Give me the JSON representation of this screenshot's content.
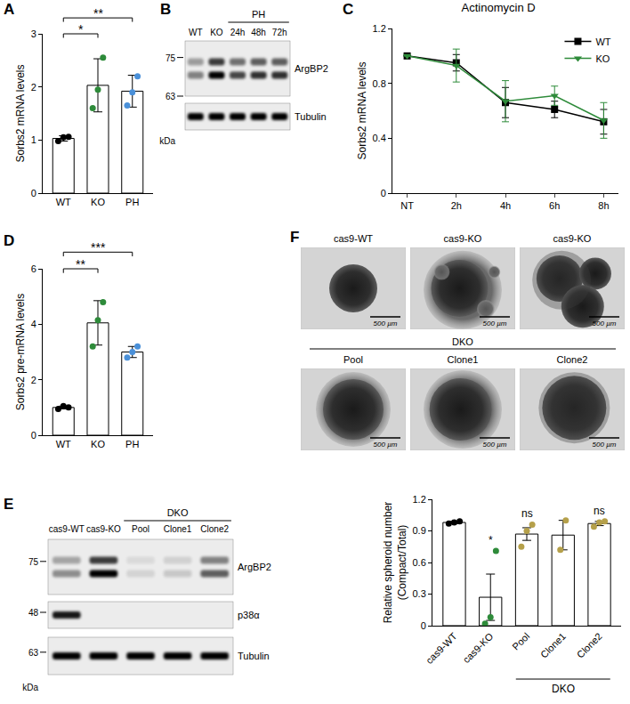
{
  "chart_data": [
    {
      "panel": "A",
      "type": "bar",
      "ylabel": "Sorbs2 mRNA levels",
      "categories": [
        "WT",
        "KO",
        "PH"
      ],
      "values": [
        1.03,
        2.03,
        1.92
      ],
      "error": [
        0.05,
        0.5,
        0.3
      ],
      "points": [
        [
          0.98,
          1.05,
          1.06
        ],
        [
          1.6,
          1.95,
          2.55
        ],
        [
          1.65,
          1.9,
          2.2
        ]
      ],
      "colors": [
        "#000000",
        "#2e8b3a",
        "#4a90d9"
      ],
      "ylim": [
        0,
        3
      ],
      "yticks": [
        0,
        1,
        2,
        3
      ],
      "annotations": [
        {
          "from": "WT",
          "to": "KO",
          "text": "*"
        },
        {
          "from": "WT",
          "to": "PH",
          "text": "**"
        }
      ]
    },
    {
      "panel": "C",
      "type": "line",
      "title": "Actinomycin D",
      "ylabel": "Sorbs2 mRNA levels",
      "categories": [
        "NT",
        "2h",
        "4h",
        "6h",
        "8h"
      ],
      "series": [
        {
          "name": "WT",
          "color": "#000000",
          "marker": "square",
          "values": [
            1,
            0.95,
            0.66,
            0.61,
            0.52
          ],
          "error": [
            0,
            0.06,
            0.11,
            0.06,
            0.09
          ]
        },
        {
          "name": "KO",
          "color": "#2e8b3a",
          "marker": "triangle-down",
          "values": [
            1,
            0.93,
            0.67,
            0.71,
            0.53
          ],
          "error": [
            0,
            0.12,
            0.15,
            0.07,
            0.13
          ]
        }
      ],
      "ylim": [
        0,
        1.2
      ],
      "yticks": [
        0,
        0.4,
        0.8,
        1.2
      ],
      "legend": "top right"
    },
    {
      "panel": "D",
      "type": "bar",
      "ylabel": "Sorbs2 pre-mRNA levels",
      "categories": [
        "WT",
        "KO",
        "PH"
      ],
      "values": [
        1.0,
        4.05,
        3.0
      ],
      "error": [
        0.05,
        0.8,
        0.2
      ],
      "points": [
        [
          0.95,
          1.05,
          1.0
        ],
        [
          3.2,
          4.15,
          4.8
        ],
        [
          2.8,
          3.0,
          3.2
        ]
      ],
      "colors": [
        "#000000",
        "#2e8b3a",
        "#4a90d9"
      ],
      "ylim": [
        0,
        6
      ],
      "yticks": [
        0,
        2,
        4,
        6
      ],
      "annotations": [
        {
          "from": "WT",
          "to": "KO",
          "text": "**"
        },
        {
          "from": "WT",
          "to": "PH",
          "text": "***"
        }
      ]
    },
    {
      "type": "bar",
      "ylabel": "Relative spheroid number\n(Compact/Total)",
      "categories": [
        "cas9-WT",
        "cas9-KO",
        "Pool",
        "Clone1",
        "Clone2"
      ],
      "values": [
        0.98,
        0.27,
        0.87,
        0.86,
        0.97
      ],
      "error": [
        0.01,
        0.22,
        0.06,
        0.14,
        0.02
      ],
      "points": [
        [
          0.97,
          0.98,
          0.99
        ],
        [
          0.02,
          0.08,
          0.71
        ],
        [
          0.75,
          0.9,
          0.96
        ],
        [
          0.72,
          1.0
        ],
        [
          0.94,
          0.98,
          0.99
        ]
      ],
      "colors": [
        "#000000",
        "#2e8b3a",
        "#b5a04a",
        "#b5a04a",
        "#b5a04a"
      ],
      "ylim": [
        0,
        1.2
      ],
      "yticks": [
        0,
        0.3,
        0.6,
        0.9,
        1.2
      ],
      "groups": [
        {
          "label": "DKO",
          "categories": [
            "Pool",
            "Clone1",
            "Clone2"
          ]
        }
      ],
      "annotations": [
        {
          "category": "cas9-KO",
          "text": "*"
        },
        {
          "category": "Pool",
          "text": "ns"
        },
        {
          "category": "Clone2",
          "text": "ns"
        }
      ]
    }
  ],
  "blots": [
    {
      "panel": "B",
      "lanes": [
        "WT",
        "KO",
        "24h",
        "48h",
        "72h"
      ],
      "groups": [
        {
          "label": "PH",
          "lanes": [
            "24h",
            "48h",
            "72h"
          ]
        }
      ],
      "rows": [
        {
          "label": "ArgBP2",
          "markers": [
            75,
            63
          ],
          "intensities": [
            0.45,
            1,
            0.7,
            0.8,
            0.8
          ]
        },
        {
          "label": "Tubulin",
          "markers": [],
          "intensities": [
            1,
            1,
            1,
            1,
            1
          ]
        }
      ],
      "unit": "kDa"
    },
    {
      "panel": "E",
      "lanes": [
        "cas9-WT",
        "cas9-KO",
        "Pool",
        "Clone1",
        "Clone2"
      ],
      "groups": [
        {
          "label": "DKO",
          "lanes": [
            "Pool",
            "Clone1",
            "Clone2"
          ]
        }
      ],
      "rows": [
        {
          "label": "ArgBP2",
          "markers": [
            75
          ],
          "intensities": [
            0.4,
            1,
            0.1,
            0.15,
            0.6
          ]
        },
        {
          "label": "p38α",
          "markers": [
            48
          ],
          "intensities": [
            0.9,
            0,
            0,
            0,
            0
          ]
        },
        {
          "label": "Tubulin",
          "markers": [
            63
          ],
          "intensities": [
            1,
            1,
            1,
            1,
            1
          ]
        }
      ],
      "unit": "kDa"
    }
  ],
  "micrographs": {
    "panel": "F",
    "top": [
      "cas9-WT",
      "cas9-KO",
      "cas9-KO"
    ],
    "group": "DKO",
    "bottom": [
      "Pool",
      "Clone1",
      "Clone2"
    ],
    "scale_bar": "500 µm"
  }
}
